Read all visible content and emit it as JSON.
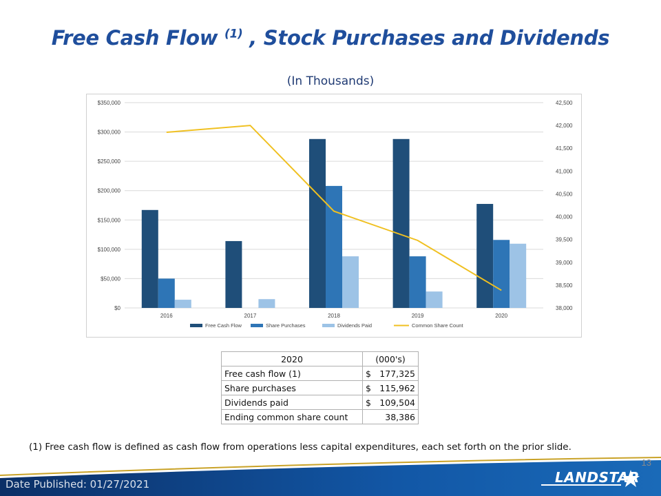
{
  "slide": {
    "title_main": "Free Cash Flow ",
    "title_sup": "(1)",
    "title_rest": " , Stock Purchases and Dividends",
    "subtitle": "(In Thousands)",
    "footnote": "(1)  Free cash flow is defined as cash flow from operations less capital expenditures, each set forth on the prior slide.",
    "page_number": "13",
    "date_published": "Date Published:  01/27/2021",
    "logo_text": "LANDSTAR"
  },
  "colors": {
    "title": "#1f4e9c",
    "free_cash_flow": "#1f4e79",
    "share_purchases": "#2e75b6",
    "dividends_paid": "#9dc3e6",
    "common_share_count": "#f0c020",
    "band_dark": "#0d3a7a",
    "band_light": "#1a6ab8"
  },
  "chart_data": {
    "type": "bar",
    "categories": [
      "2016",
      "2017",
      "2018",
      "2019",
      "2020"
    ],
    "series": [
      {
        "name": "Free Cash Flow",
        "type": "bar",
        "axis": "left",
        "values": [
          167000,
          114000,
          288000,
          288000,
          177325
        ]
      },
      {
        "name": "Share Purchases",
        "type": "bar",
        "axis": "left",
        "values": [
          50000,
          0,
          208000,
          88000,
          115962
        ]
      },
      {
        "name": "Dividends Paid",
        "type": "bar",
        "axis": "left",
        "values": [
          14000,
          15000,
          88000,
          28000,
          109504
        ]
      },
      {
        "name": "Common Share Count",
        "type": "line",
        "axis": "right",
        "values": [
          41850,
          42000,
          40120,
          39480,
          38386
        ]
      }
    ],
    "y_left": {
      "min": 0,
      "max": 350000,
      "ticks": [
        "$0",
        "$50,000",
        "$100,000",
        "$150,000",
        "$200,000",
        "$250,000",
        "$300,000",
        "$350,000"
      ]
    },
    "y_right": {
      "min": 38000,
      "max": 42500,
      "ticks": [
        "38,000",
        "38,500",
        "39,000",
        "39,500",
        "40,000",
        "40,500",
        "41,000",
        "41,500",
        "42,000",
        "42,500"
      ]
    },
    "grid": true,
    "legend_position": "bottom"
  },
  "table": {
    "header": [
      "2020",
      "(000's)"
    ],
    "rows": [
      {
        "label": "Free cash flow (1)",
        "currency": "$",
        "value": "177,325"
      },
      {
        "label": "Share purchases",
        "currency": "$",
        "value": "115,962"
      },
      {
        "label": "Dividends paid",
        "currency": "$",
        "value": "109,504"
      },
      {
        "label": "Ending common share count",
        "currency": "",
        "value": "38,386"
      }
    ]
  }
}
